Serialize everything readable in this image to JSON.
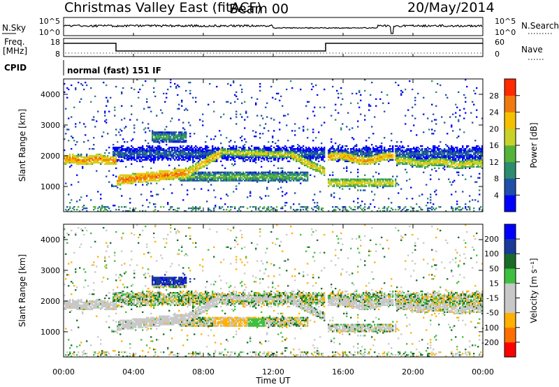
{
  "header": {
    "station": "Christmas Valley East (fitACF)",
    "beam": "Beam 00",
    "date": "20/May/2014"
  },
  "noise_panel": {
    "left_label": "N.Sky",
    "right_label": "N.Search",
    "left_ticks": [
      "10^5",
      "10^0"
    ],
    "right_ticks": [
      "10^5",
      "10^0"
    ]
  },
  "freq_panel": {
    "left_label_1": "Freq.",
    "left_label_2": "[MHz]",
    "right_label": "Nave",
    "left_ticks": [
      "18",
      "8"
    ],
    "right_ticks": [
      "60",
      "0"
    ]
  },
  "cpid_panel": {
    "left_label": "CPID",
    "program": "normal (fast) 151 IF"
  },
  "colors": {
    "power": [
      "#0000ff",
      "#1f4fa8",
      "#2c8c6e",
      "#56b33a",
      "#c8d22a",
      "#f5c000",
      "#f07a10",
      "#ff2a00"
    ],
    "velocity": [
      "#ff0000",
      "#ff6f00",
      "#ffb000",
      "#c8c8c8",
      "#c8c8c8",
      "#3fbf3f",
      "#1a6b2a",
      "#1a3a9a",
      "#0000ff"
    ]
  },
  "chart_data": [
    {
      "type": "heatmap",
      "panel": "power",
      "ylabel": "Slant Range [km]",
      "y_ticks": [
        "1000",
        "2000",
        "3000",
        "4000"
      ],
      "ylim": [
        180,
        4500
      ],
      "xlim": [
        "00:00",
        "24:00"
      ],
      "colorbar_label": "Power [dB]",
      "colorbar_ticks": [
        "4",
        "8",
        "12",
        "16",
        "20",
        "24",
        "28"
      ],
      "colorbar_range": [
        0,
        32
      ],
      "features": [
        {
          "time": [
            "00:00",
            "03:00"
          ],
          "range_km": [
            1750,
            1900
          ],
          "level": "high"
        },
        {
          "time": [
            "03:00",
            "07:00"
          ],
          "range_km": [
            1050,
            1400
          ],
          "level": "high"
        },
        {
          "time": [
            "07:00",
            "10:00"
          ],
          "range_km": [
            1500,
            2200
          ],
          "level": "medium-high"
        },
        {
          "time": [
            "10:00",
            "15:00"
          ],
          "range_km": [
            1300,
            2200
          ],
          "level": "medium"
        },
        {
          "time": [
            "15:00",
            "19:00"
          ],
          "range_km": [
            1800,
            2100
          ],
          "level": "high"
        },
        {
          "time": [
            "19:00",
            "24:00"
          ],
          "range_km": [
            1600,
            1900
          ],
          "level": "medium-high"
        }
      ]
    },
    {
      "type": "heatmap",
      "panel": "velocity",
      "ylabel": "Slant Range [km]",
      "y_ticks": [
        "1000",
        "2000",
        "3000",
        "4000"
      ],
      "ylim": [
        180,
        4500
      ],
      "xlim": [
        "00:00",
        "24:00"
      ],
      "colorbar_label": "Velocity [m s⁻¹]",
      "colorbar_ticks": [
        "200",
        "100",
        "50",
        "15",
        "-15",
        "-50",
        "-100",
        "-200"
      ],
      "colorbar_range": [
        -250,
        250
      ],
      "xlabel": "Time UT",
      "x_ticks": [
        "00:00",
        "04:00",
        "08:00",
        "12:00",
        "16:00",
        "20:00",
        "00:00"
      ]
    }
  ]
}
